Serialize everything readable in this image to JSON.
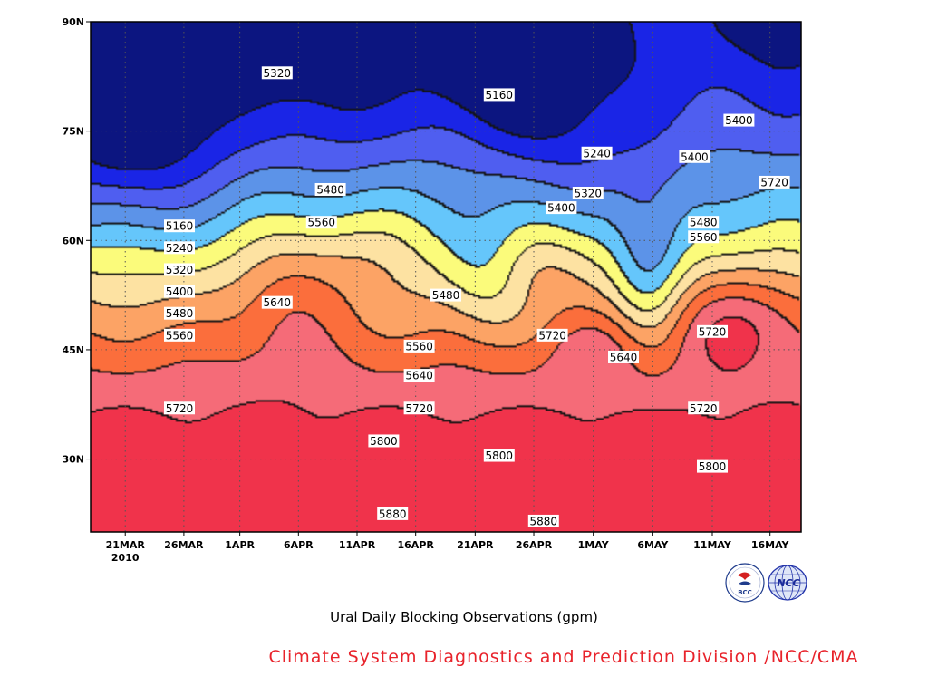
{
  "chart_data": {
    "type": "heatmap",
    "title": "Ural Daily Blocking Observations (gpm)",
    "credit": "Climate System Diagnostics and Prediction Division /NCC/CMA",
    "x_ticks": [
      "21MAR",
      "26MAR",
      "1APR",
      "6APR",
      "11APR",
      "16APR",
      "21APR",
      "26APR",
      "1MAY",
      "6MAY",
      "11MAY",
      "16MAY"
    ],
    "x_year_label": "2010",
    "y_ticks": [
      "30N",
      "45N",
      "60N",
      "75N",
      "90N"
    ],
    "ylim": [
      20,
      90
    ],
    "contour_interval": 80,
    "grid": true,
    "levels": [
      5160,
      5240,
      5320,
      5400,
      5480,
      5560,
      5640,
      5720,
      5800,
      5880
    ],
    "colors": [
      "#0c1580",
      "#1a25e6",
      "#4f5ef0",
      "#5c93e8",
      "#65c6fb",
      "#fbfb7b",
      "#fde2a2",
      "#fca365",
      "#fb6e3c",
      "#f56b78",
      "#f0334b"
    ],
    "contour_labels": [
      {
        "value": "5160",
        "day": 10,
        "lat": 62
      },
      {
        "value": "5240",
        "day": 10,
        "lat": 59
      },
      {
        "value": "5320",
        "day": 10,
        "lat": 56
      },
      {
        "value": "5400",
        "day": 10,
        "lat": 53
      },
      {
        "value": "5480",
        "day": 10,
        "lat": 50
      },
      {
        "value": "5560",
        "day": 10,
        "lat": 47
      },
      {
        "value": "5720",
        "day": 10,
        "lat": 37
      },
      {
        "value": "5320",
        "day": 21,
        "lat": 83
      },
      {
        "value": "5640",
        "day": 21,
        "lat": 51.5
      },
      {
        "value": "5480",
        "day": 27,
        "lat": 67
      },
      {
        "value": "5560",
        "day": 26,
        "lat": 62.5
      },
      {
        "value": "5800",
        "day": 33,
        "lat": 32.5
      },
      {
        "value": "5880",
        "day": 34,
        "lat": 22.5
      },
      {
        "value": "5560",
        "day": 37,
        "lat": 45.5
      },
      {
        "value": "5640",
        "day": 37,
        "lat": 41.5
      },
      {
        "value": "5720",
        "day": 37,
        "lat": 37
      },
      {
        "value": "5480",
        "day": 40,
        "lat": 52.5
      },
      {
        "value": "5160",
        "day": 46,
        "lat": 80
      },
      {
        "value": "5800",
        "day": 46,
        "lat": 30.5
      },
      {
        "value": "5720",
        "day": 52,
        "lat": 47
      },
      {
        "value": "5880",
        "day": 51,
        "lat": 21.5
      },
      {
        "value": "5400",
        "day": 53,
        "lat": 64.5
      },
      {
        "value": "5320",
        "day": 56,
        "lat": 66.5
      },
      {
        "value": "5240",
        "day": 57,
        "lat": 72
      },
      {
        "value": "5640",
        "day": 60,
        "lat": 44
      },
      {
        "value": "5400",
        "day": 68,
        "lat": 71.5
      },
      {
        "value": "5480",
        "day": 69,
        "lat": 62.5
      },
      {
        "value": "5560",
        "day": 69,
        "lat": 60.5
      },
      {
        "value": "5720",
        "day": 70,
        "lat": 47.5
      },
      {
        "value": "5720",
        "day": 69,
        "lat": 37
      },
      {
        "value": "5800",
        "day": 70,
        "lat": 29
      },
      {
        "value": "5400",
        "day": 73,
        "lat": 76.5
      },
      {
        "value": "5720",
        "day": 77,
        "lat": 68
      }
    ]
  }
}
